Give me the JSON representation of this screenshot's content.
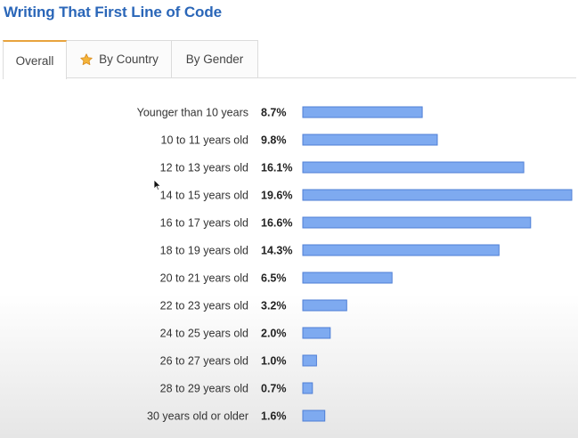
{
  "title": "Writing That First Line of Code",
  "tabs": [
    {
      "label": "Overall",
      "active": true
    },
    {
      "label": "By Country",
      "active": false,
      "icon": "star-icon"
    },
    {
      "label": "By Gender",
      "active": false
    }
  ],
  "colors": {
    "title": "#2a66b8",
    "bar_fill": "#7eaaf0",
    "bar_stroke": "#4f7fd6",
    "active_tab_accent": "#e8a33d"
  },
  "chart_data": {
    "type": "bar",
    "orientation": "horizontal",
    "title": "",
    "xlabel": "",
    "ylabel": "",
    "grid": false,
    "legend": "none",
    "xlim": [
      0,
      20
    ],
    "categories": [
      "Younger than 10 years",
      "10 to 11 years old",
      "12 to 13 years old",
      "14 to 15 years old",
      "16 to 17 years old",
      "18 to 19 years old",
      "20 to 21 years old",
      "22 to 23 years old",
      "24 to 25 years old",
      "26 to 27 years old",
      "28 to 29 years old",
      "30 years old or older"
    ],
    "values": [
      8.7,
      9.8,
      16.1,
      19.6,
      16.6,
      14.3,
      6.5,
      3.2,
      2.0,
      1.0,
      0.7,
      1.6
    ],
    "value_labels": [
      "8.7%",
      "9.8%",
      "16.1%",
      "19.6%",
      "16.6%",
      "14.3%",
      "6.5%",
      "3.2%",
      "2.0%",
      "1.0%",
      "0.7%",
      "1.6%"
    ]
  }
}
